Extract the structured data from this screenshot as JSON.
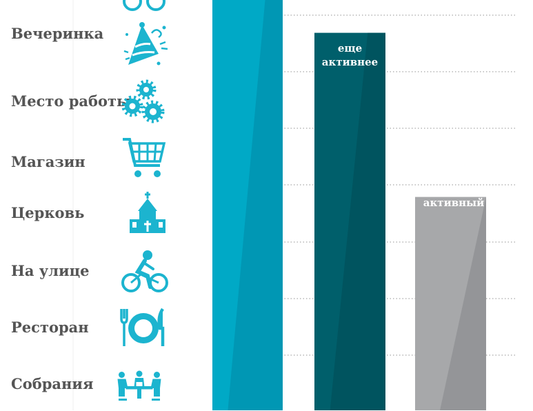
{
  "chart_data": {
    "type": "bar",
    "categories": [
      "Вечеринка",
      "Место работы",
      "Магазин",
      "Церковь",
      "На улице",
      "Ресторан",
      "Собрания"
    ],
    "series": [
      {
        "label": "",
        "value": 100,
        "color": "#00a9c6"
      },
      {
        "label": "еще активнее",
        "value": 92,
        "color": "#005f6b"
      },
      {
        "label": "активный",
        "value": 52,
        "color": "#a7a8aa"
      }
    ],
    "icons": [
      "party-hat-icon",
      "gears-icon",
      "shopping-cart-icon",
      "church-icon",
      "bicycle-icon",
      "plate-cutlery-icon",
      "meeting-icon"
    ],
    "accent": "#1cb4cf",
    "grid": true
  }
}
